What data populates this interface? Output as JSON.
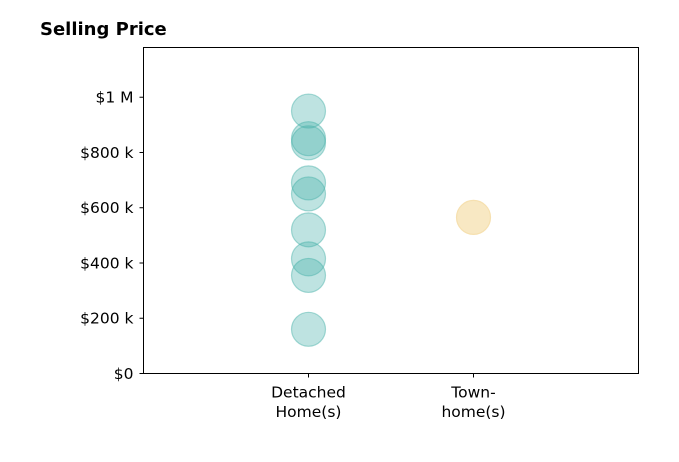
{
  "chart_data": {
    "type": "scatter",
    "title": "Selling Price",
    "categories": [
      "Detached Home(s)",
      "Town-home(s)"
    ],
    "category_tick_lines": [
      [
        "Detached",
        "Home(s)"
      ],
      [
        "Town-",
        "home(s)"
      ]
    ],
    "y_tick_values": [
      0,
      200000,
      400000,
      600000,
      800000,
      1000000
    ],
    "y_tick_labels": [
      "$0",
      "$200 k",
      "$400 k",
      "$600 k",
      "$800 k",
      "$1 M"
    ],
    "ylim": [
      0,
      1180000
    ],
    "xlim": [
      -1,
      2
    ],
    "grid": false,
    "marker_opacity": 0.35,
    "series": [
      {
        "category": "Detached Home(s)",
        "color": "#45b0a8",
        "values": [
          950000,
          850000,
          835000,
          690000,
          650000,
          520000,
          415000,
          355000,
          160000
        ]
      },
      {
        "category": "Town-home(s)",
        "color": "#f5deaa",
        "opacity": 0.7,
        "values": [
          565000
        ]
      }
    ]
  }
}
